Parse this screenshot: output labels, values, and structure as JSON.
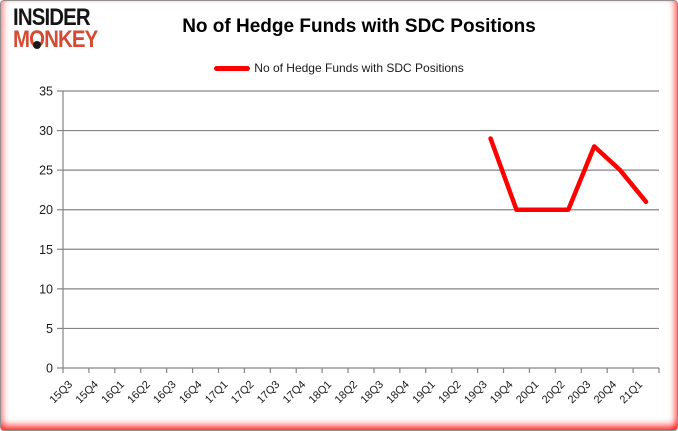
{
  "logo": {
    "line1": "INSIDER",
    "line2": "MONKEY",
    "color": "#d64a33"
  },
  "header": {
    "title": "No of Hedge Funds with SDC Positions"
  },
  "legend": {
    "label": "No of Hedge Funds with SDC Positions",
    "line_color": "#ff0000",
    "position": "top"
  },
  "colors": {
    "series_red": "#ff0000",
    "gridline": "#848484",
    "axis": "#848484",
    "tick_text": "#1a1a1a",
    "background": "#ffffff",
    "frame_glow": "#ff0000"
  },
  "chart_data": {
    "type": "line",
    "title": "No of Hedge Funds with SDC Positions",
    "xlabel": "",
    "ylabel": "",
    "categories": [
      "15Q3",
      "15Q4",
      "16Q1",
      "16Q2",
      "16Q3",
      "16Q4",
      "17Q1",
      "17Q2",
      "17Q3",
      "17Q4",
      "18Q1",
      "18Q2",
      "18Q3",
      "18Q4",
      "19Q1",
      "19Q2",
      "19Q3",
      "19Q4",
      "20Q1",
      "20Q2",
      "20Q3",
      "20Q4",
      "21Q1"
    ],
    "series": [
      {
        "name": "No of Hedge Funds with SDC Positions",
        "color": "#ff0000",
        "values": [
          null,
          null,
          null,
          null,
          null,
          null,
          null,
          null,
          null,
          null,
          null,
          null,
          null,
          null,
          null,
          null,
          29,
          20,
          20,
          20,
          28,
          25,
          21
        ]
      }
    ],
    "ylim": [
      0,
      35
    ],
    "yticks": [
      0,
      5,
      10,
      15,
      20,
      25,
      30,
      35
    ],
    "grid": true,
    "legend_position": "top"
  }
}
